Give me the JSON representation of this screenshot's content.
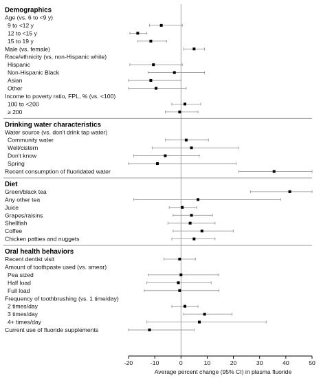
{
  "chart_data": {
    "type": "forest",
    "xlabel": "Average percent change (95% CI) in plasma fluoride",
    "xlim": [
      -20,
      50
    ],
    "xticks": [
      -20,
      -10,
      0,
      10,
      20,
      30,
      40,
      50
    ],
    "reference_line": 0,
    "grid": false,
    "rows": [
      {
        "label": "Demographics",
        "kind": "header"
      },
      {
        "label": "Age (vs. 6 to <9 y)",
        "kind": "group"
      },
      {
        "label": "9 to <12 y",
        "kind": "item",
        "est": -7.5,
        "lo": -12,
        "hi": 0.5
      },
      {
        "label": "12 to <15 y",
        "kind": "item",
        "est": -16.5,
        "lo": -19.5,
        "hi": -13
      },
      {
        "label": "15 to 19 y",
        "kind": "item",
        "est": -11.5,
        "lo": -16.5,
        "hi": -5.5
      },
      {
        "label": "Male (vs. female)",
        "kind": "group",
        "est": 5,
        "lo": 1,
        "hi": 9
      },
      {
        "label": "Race/ethnicity (vs. non-Hispanic white)",
        "kind": "group"
      },
      {
        "label": "Hispanic",
        "kind": "item",
        "est": -10.5,
        "lo": -19.5,
        "hi": 0.5
      },
      {
        "label": "Non-Hispanic Black",
        "kind": "item",
        "est": -2.5,
        "lo": -12.5,
        "hi": 9
      },
      {
        "label": "Asian",
        "kind": "item",
        "est": -11.5,
        "lo": -20,
        "hi": 0
      },
      {
        "label": "Other",
        "kind": "item",
        "est": -9.5,
        "lo": -20,
        "hi": 2
      },
      {
        "label": "Income to poverty ratio, FPL, % (vs. <100)",
        "kind": "group"
      },
      {
        "label": "100 to <200",
        "kind": "item",
        "est": 1.5,
        "lo": -3.5,
        "hi": 7.5
      },
      {
        "label": "≥  200",
        "kind": "item",
        "est": -0.5,
        "lo": -6,
        "hi": 6.5
      },
      {
        "label": "Drinking water characteristics",
        "kind": "header"
      },
      {
        "label": "Water source (vs. don't drink tap water)",
        "kind": "group"
      },
      {
        "label": "Community water",
        "kind": "item",
        "est": 2,
        "lo": -6,
        "hi": 10.5
      },
      {
        "label": "Well/cistern",
        "kind": "item",
        "est": 4,
        "lo": -11,
        "hi": 22
      },
      {
        "label": "Don't know",
        "kind": "item",
        "est": -6,
        "lo": -18,
        "hi": 7
      },
      {
        "label": "Spring",
        "kind": "item",
        "est": -9,
        "lo": -20,
        "hi": 21
      },
      {
        "label": "Recent consumption of fluoridated water",
        "kind": "group",
        "est": 35.5,
        "lo": 22,
        "hi": 50
      },
      {
        "label": "Diet",
        "kind": "header"
      },
      {
        "label": "Green/black tea",
        "kind": "group",
        "est": 41.5,
        "lo": 26.5,
        "hi": 50
      },
      {
        "label": "Any other tea",
        "kind": "group",
        "est": 6.5,
        "lo": -18,
        "hi": 38
      },
      {
        "label": "Juice",
        "kind": "group",
        "est": 0.5,
        "lo": -4.5,
        "hi": 6
      },
      {
        "label": "Grapes/raisins",
        "kind": "group",
        "est": 4,
        "lo": -3,
        "hi": 12
      },
      {
        "label": "Shellfish",
        "kind": "group",
        "est": 3.5,
        "lo": -5,
        "hi": 13
      },
      {
        "label": "Coffee",
        "kind": "group",
        "est": 8,
        "lo": -3,
        "hi": 20
      },
      {
        "label": "Chicken patties and nuggets",
        "kind": "group",
        "est": 5,
        "lo": -3.5,
        "hi": 13
      },
      {
        "label": "Oral health behaviors",
        "kind": "header"
      },
      {
        "label": "Recent dentist visit",
        "kind": "group",
        "est": -0.5,
        "lo": -6.5,
        "hi": 5.5
      },
      {
        "label": "Amount of toothpaste used (vs. smear)",
        "kind": "group"
      },
      {
        "label": "Pea sized",
        "kind": "item",
        "est": 0,
        "lo": -12.5,
        "hi": 14.5
      },
      {
        "label": "Half load",
        "kind": "item",
        "est": -1,
        "lo": -13,
        "hi": 11.5
      },
      {
        "label": "Full load",
        "kind": "item",
        "est": -0.5,
        "lo": -14,
        "hi": 14.5
      },
      {
        "label": "Frequency of toothbrushing (vs. 1 time/day)",
        "kind": "group"
      },
      {
        "label": "2 times/day",
        "kind": "item",
        "est": 1.5,
        "lo": -3.5,
        "hi": 6.5
      },
      {
        "label": "3 times/day",
        "kind": "item",
        "est": 9,
        "lo": 1,
        "hi": 19.5
      },
      {
        "label": "4+ times/day",
        "kind": "item",
        "est": 7,
        "lo": -13,
        "hi": 32.5
      },
      {
        "label": "Current use of fluoride supplements",
        "kind": "group",
        "est": -12,
        "lo": -20,
        "hi": 5
      }
    ]
  },
  "colors": {
    "point": "#000000",
    "ci_line": "#8c8c8c",
    "reference_line": "#8c8c8c",
    "separator": "#8c8c8c",
    "axis": "#000000"
  }
}
